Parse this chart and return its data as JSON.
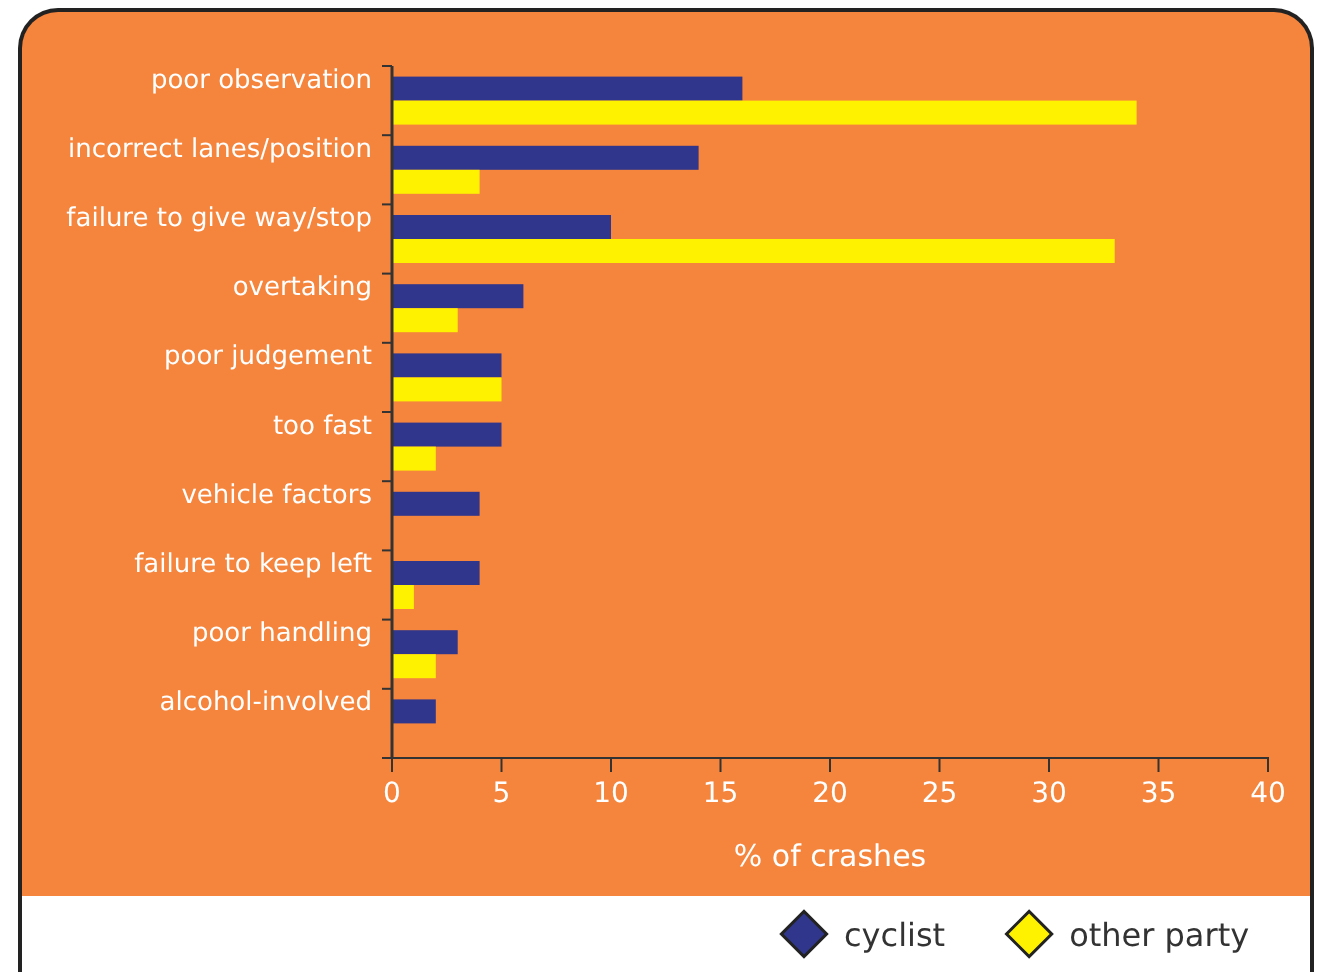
{
  "chart_data": {
    "type": "bar",
    "orientation": "horizontal",
    "xlabel": "% of crashes",
    "categories": [
      "poor observation",
      "incorrect lanes/position",
      "failure to give way/stop",
      "overtaking",
      "poor judgement",
      "too fast",
      "vehicle factors",
      "failure to keep left",
      "poor handling",
      "alcohol-involved"
    ],
    "series": [
      {
        "name": "cyclist",
        "color": "#30368c",
        "values": [
          16,
          14,
          10,
          6,
          5,
          5,
          4,
          4,
          3,
          2
        ]
      },
      {
        "name": "other party",
        "color": "#fff200",
        "values": [
          34,
          4,
          33,
          3,
          5,
          2,
          0,
          1,
          2,
          0
        ]
      }
    ],
    "xlim": [
      0,
      40
    ],
    "xticks": [
      0,
      5,
      10,
      15,
      20,
      25,
      30,
      35,
      40
    ],
    "grid": false,
    "legend": "bottom right"
  }
}
